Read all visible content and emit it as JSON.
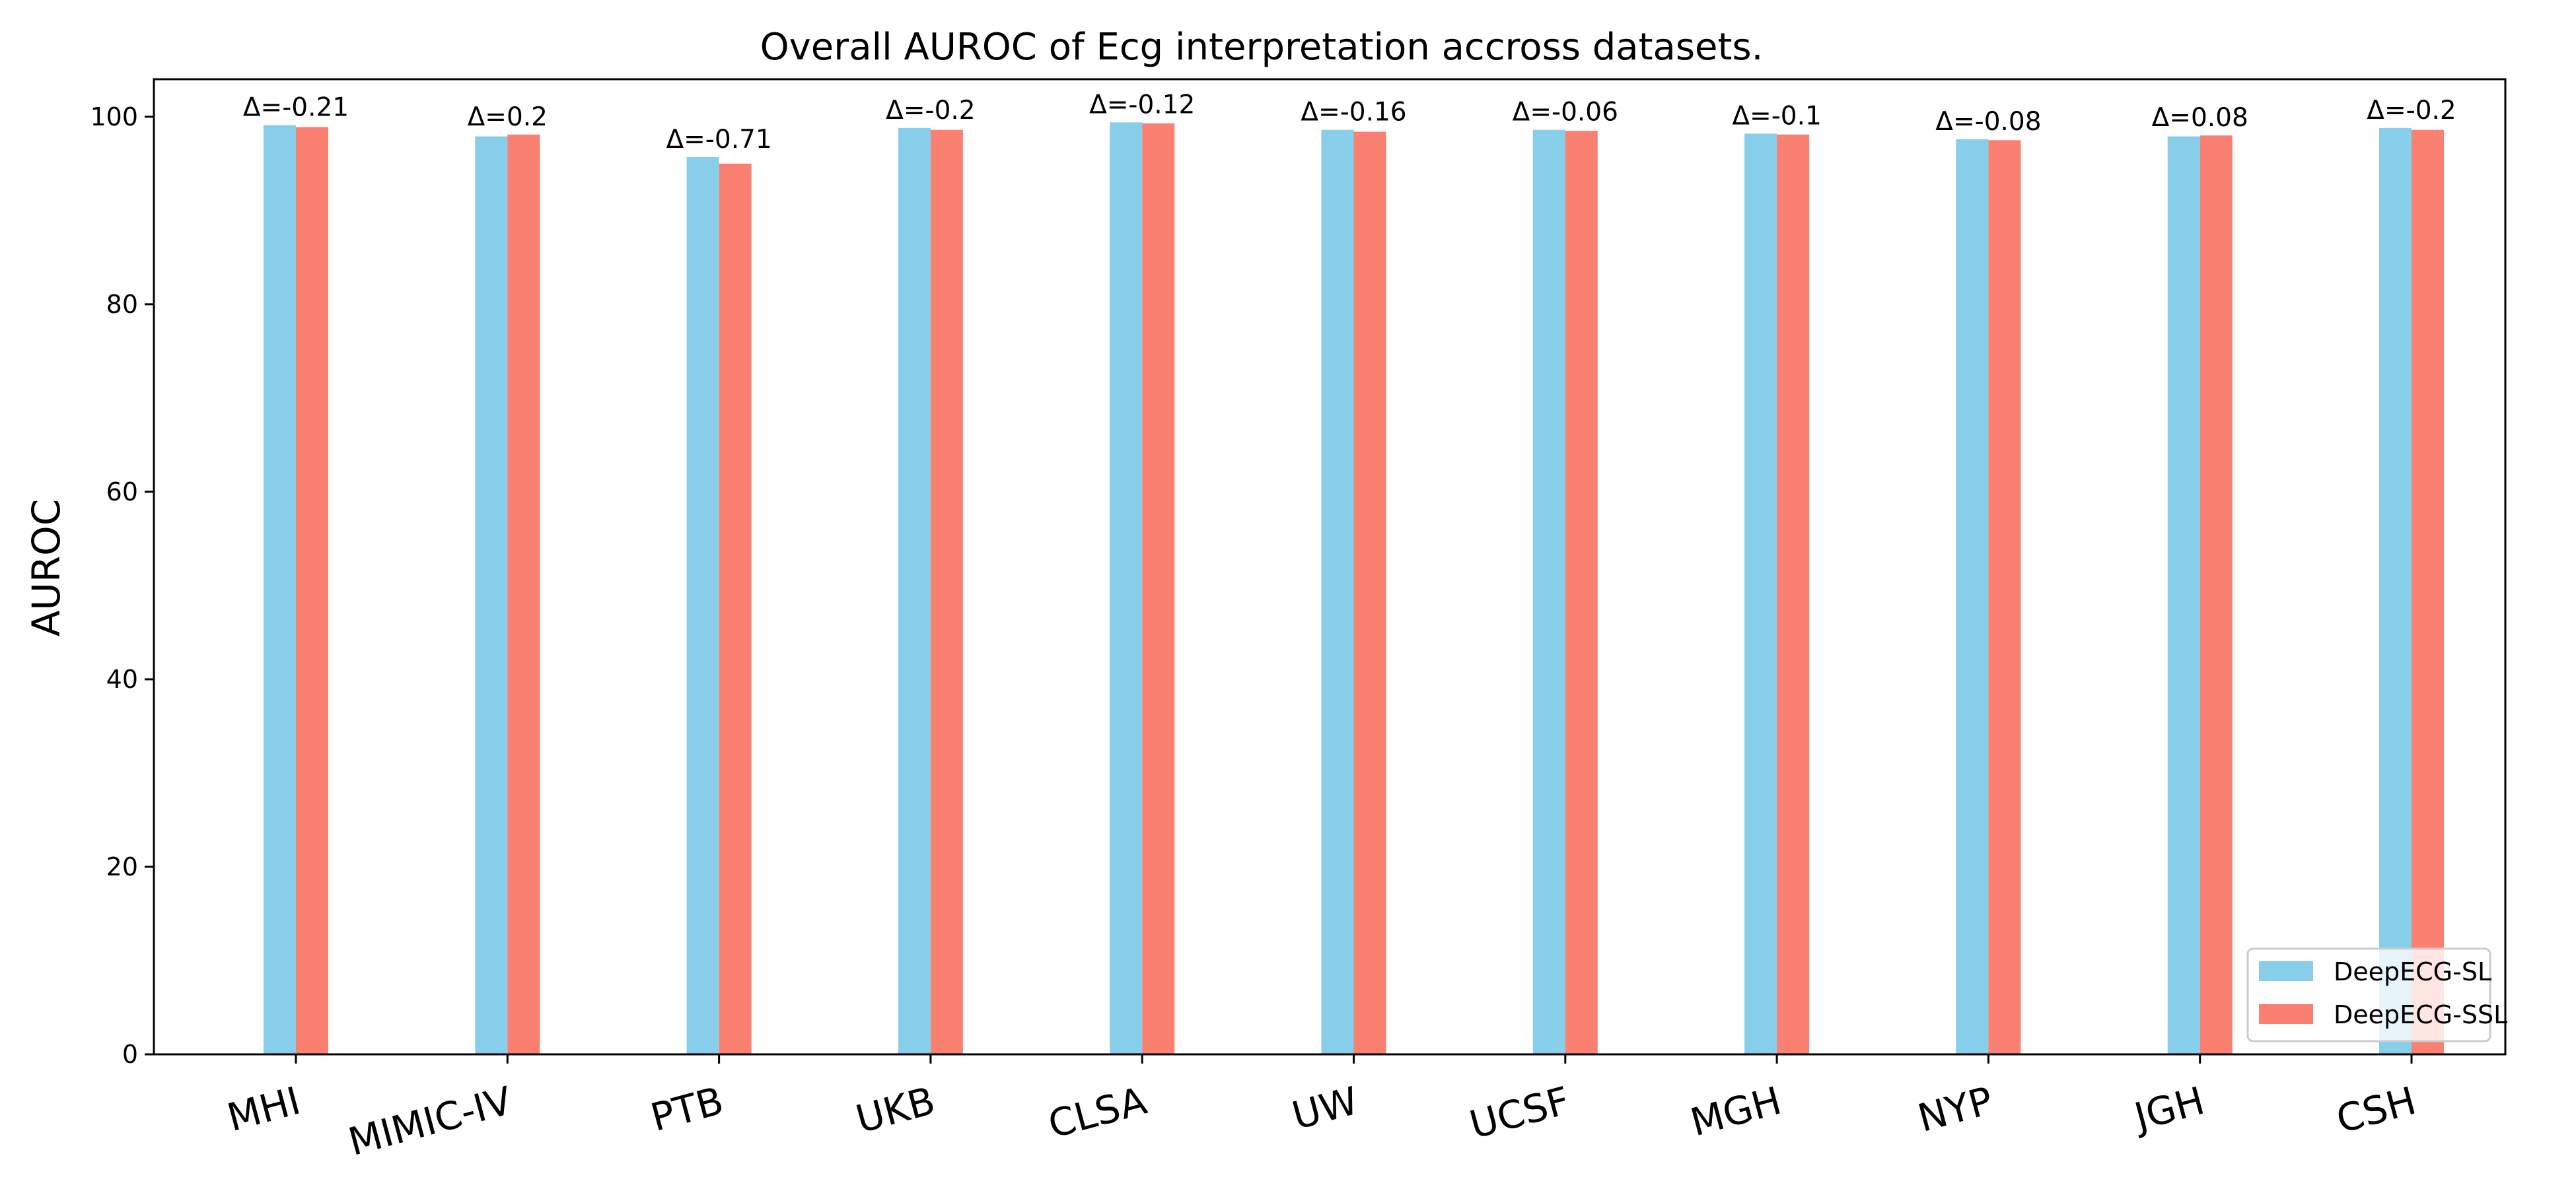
{
  "chart_data": {
    "type": "bar",
    "title": "Overall AUROC of Ecg interpretation accross datasets.",
    "ylabel": "AUROC",
    "xlabel": "",
    "ylim": [
      0,
      104
    ],
    "yticks": [
      0,
      20,
      40,
      60,
      80,
      100
    ],
    "grid": false,
    "legend_position": "bottom-right",
    "categories": [
      "MHI",
      "MIMIC-IV",
      "PTB",
      "UKB",
      "CLSA",
      "UW",
      "UCSF",
      "MGH",
      "NYP",
      "JGH",
      "CSH"
    ],
    "series": [
      {
        "name": "DeepECG-SL",
        "color": "#87CEEB",
        "values": [
          99.1,
          97.9,
          95.7,
          98.8,
          99.4,
          98.6,
          98.6,
          98.2,
          97.6,
          97.9,
          98.8
        ]
      },
      {
        "name": "DeepECG-SSL",
        "color": "#FA8072",
        "values": [
          98.9,
          98.1,
          95.0,
          98.6,
          99.3,
          98.4,
          98.5,
          98.1,
          97.5,
          98.0,
          98.6
        ]
      }
    ],
    "annotations": [
      "Δ=-0.21",
      "Δ=0.2",
      "Δ=-0.71",
      "Δ=-0.2",
      "Δ=-0.12",
      "Δ=-0.16",
      "Δ=-0.06",
      "Δ=-0.1",
      "Δ=-0.08",
      "Δ=0.08",
      "Δ=-0.2"
    ]
  }
}
